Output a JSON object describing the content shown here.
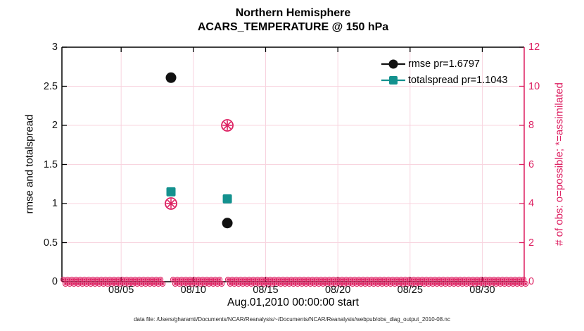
{
  "caption": "data file: /Users/gharamti/Documents/NCAR/Reanalysis/~/Documents/NCAR/Reanalysis/webpub/obs_diag_output_2010-08.nc",
  "colors": {
    "axis_black": "#000000",
    "pink": "#dd1f61",
    "grid_pink": "#f8d4df",
    "teal": "#13918e",
    "marker_black": "#111111",
    "background": "#ffffff"
  },
  "chart_data": {
    "type": "scatter",
    "title_line1": "Northern Hemisphere",
    "title_line2": "ACARS_TEMPERATURE @ 150 hPa",
    "x_axis": {
      "label": "Aug.01,2010 00:00:00 start",
      "range_days": [
        0.9,
        32.9
      ],
      "ticks": [
        {
          "day": 5,
          "label": "08/05"
        },
        {
          "day": 10,
          "label": "08/10"
        },
        {
          "day": 15,
          "label": "08/15"
        },
        {
          "day": 20,
          "label": "08/20"
        },
        {
          "day": 25,
          "label": "08/25"
        },
        {
          "day": 30,
          "label": "08/30"
        }
      ]
    },
    "y_left": {
      "label": "rmse and totalspread",
      "range": [
        0,
        3
      ],
      "ticks": [
        0,
        0.5,
        1,
        1.5,
        2,
        2.5,
        3
      ],
      "tick_labels": [
        "0",
        "0.5",
        "1",
        "1.5",
        "2",
        "2.5",
        "3"
      ]
    },
    "y_right": {
      "label": "# of obs: o=possible; *=assimilated",
      "range": [
        0,
        12
      ],
      "ticks": [
        0,
        2,
        4,
        6,
        8,
        10,
        12
      ],
      "tick_labels": [
        "0",
        "2",
        "4",
        "6",
        "8",
        "10",
        "12"
      ],
      "color": "#dd1f61"
    },
    "grid": {
      "visible": true,
      "color": "#f8d4df"
    },
    "legend": {
      "position": "top-right",
      "border": "none"
    },
    "series": [
      {
        "name": "rmse pr=1.6797",
        "marker": "filled-circle",
        "color": "#111111",
        "axis": "left",
        "points": [
          {
            "day": 8.45,
            "value": 2.61
          },
          {
            "day": 12.35,
            "value": 0.75
          }
        ]
      },
      {
        "name": "totalspread pr=1.1043",
        "marker": "filled-square",
        "color": "#13918e",
        "axis": "left",
        "points": [
          {
            "day": 8.45,
            "value": 1.15
          },
          {
            "day": 12.35,
            "value": 1.06
          }
        ]
      },
      {
        "name": "observations possible/assimilated",
        "marker": "circle-asterisk",
        "color": "#dd1f61",
        "axis": "right",
        "points": [
          {
            "day": 8.45,
            "value": 4
          },
          {
            "day": 12.35,
            "value": 8
          }
        ]
      }
    ],
    "zero_obs_band": {
      "description": "dense overlapping o/* observation markers along value 0 for every time bin",
      "axis": "right",
      "value": 0,
      "day_start": 1.0,
      "day_end": 32.8,
      "gap_days": [
        8.2,
        12.1
      ],
      "marker": "circle-asterisk",
      "color": "#dd1f61"
    }
  }
}
